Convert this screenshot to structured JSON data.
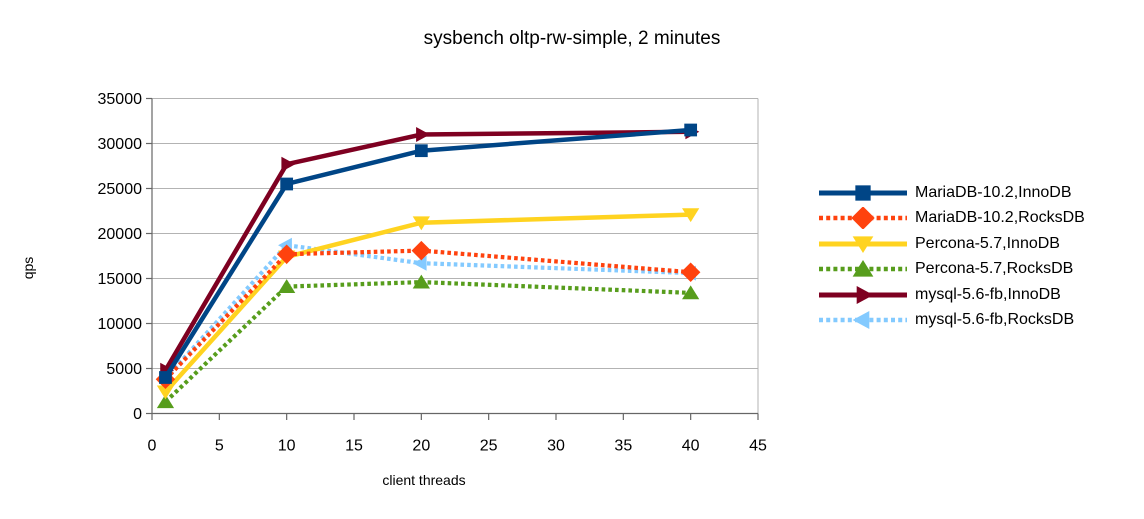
{
  "chart_data": {
    "type": "line",
    "title": "sysbench oltp-rw-simple, 2 minutes",
    "xlabel": "client threads",
    "ylabel": "qps",
    "x": [
      1,
      10,
      20,
      40
    ],
    "xlim": [
      0,
      45
    ],
    "ylim": [
      0,
      35000
    ],
    "x_ticks": [
      0,
      5,
      10,
      15,
      20,
      25,
      30,
      35,
      40,
      45
    ],
    "y_ticks": [
      0,
      5000,
      10000,
      15000,
      20000,
      25000,
      30000,
      35000
    ],
    "grid": "horizontal-only",
    "legend_position": "right",
    "colors": {
      "background": "#ffffff",
      "gridline": "#b3b3b3",
      "axis": "#666666",
      "text": "#000000"
    },
    "series": [
      {
        "name": "MariaDB-10.2,InnoDB",
        "color": "#004586",
        "line_style": "solid",
        "marker": "square",
        "values": [
          4000,
          25500,
          29200,
          31500
        ]
      },
      {
        "name": "MariaDB-10.2,RocksDB",
        "color": "#ff420e",
        "line_style": "dotted",
        "marker": "diamond",
        "values": [
          3800,
          17700,
          18100,
          15700
        ]
      },
      {
        "name": "Percona-5.7,InnoDB",
        "color": "#ffd320",
        "line_style": "solid",
        "marker": "triangle-down",
        "values": [
          2400,
          17400,
          21200,
          22100
        ]
      },
      {
        "name": "Percona-5.7,RocksDB",
        "color": "#579d1c",
        "line_style": "dotted",
        "marker": "triangle-up",
        "values": [
          1300,
          14100,
          14600,
          13400
        ]
      },
      {
        "name": "mysql-5.6-fb,InnoDB",
        "color": "#7e0021",
        "line_style": "solid",
        "marker": "arrow-right",
        "values": [
          4800,
          27700,
          31000,
          31300
        ]
      },
      {
        "name": "mysql-5.6-fb,RocksDB",
        "color": "#83caff",
        "line_style": "dotted",
        "marker": "arrow-left",
        "values": [
          3900,
          18700,
          16700,
          15600
        ]
      }
    ],
    "draw_order": [
      5,
      3,
      2,
      1,
      4,
      0
    ]
  }
}
